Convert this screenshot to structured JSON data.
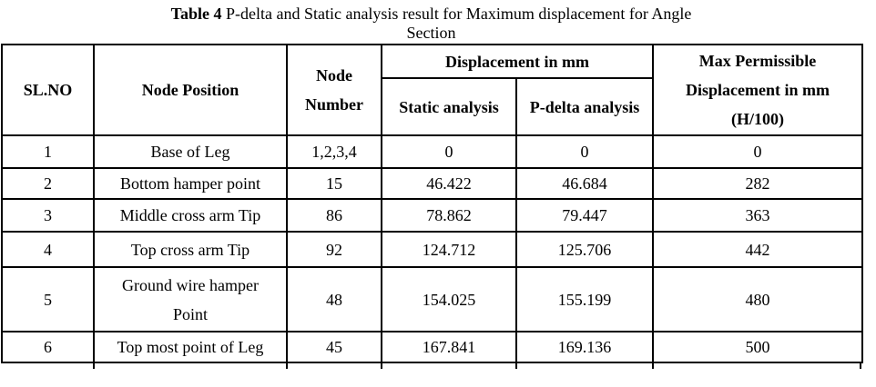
{
  "title": {
    "bold_prefix": "Table 4",
    "text": " P-delta and Static analysis result for Maximum displacement for Angle",
    "line2": "Section"
  },
  "table": {
    "headers": {
      "sl_no": "SL.NO",
      "node_position": "Node Position",
      "node_number": [
        "Node",
        "Number"
      ],
      "displacement_group": "Displacement in mm",
      "static_analysis": "Static analysis",
      "p_delta_analysis": "P-delta analysis",
      "max_permissible": [
        "Max Permissible",
        "Displacement in mm",
        "(H/100)"
      ]
    },
    "rows": [
      {
        "sl_no": "1",
        "node_position": "Base of Leg",
        "node_number": "1,2,3,4",
        "static_analysis": "0",
        "p_delta_analysis": "0",
        "max_permissible": "0"
      },
      {
        "sl_no": "2",
        "node_position": "Bottom hamper point",
        "node_number": "15",
        "static_analysis": "46.422",
        "p_delta_analysis": "46.684",
        "max_permissible": "282"
      },
      {
        "sl_no": "3",
        "node_position": "Middle cross arm Tip",
        "node_number": "86",
        "static_analysis": "78.862",
        "p_delta_analysis": "79.447",
        "max_permissible": "363"
      },
      {
        "sl_no": "4",
        "node_position": "Top cross arm Tip",
        "node_number": "92",
        "static_analysis": "124.712",
        "p_delta_analysis": "125.706",
        "max_permissible": "442"
      },
      {
        "sl_no": "5",
        "node_position": [
          "Ground wire hamper",
          "Point"
        ],
        "node_number": "48",
        "static_analysis": "154.025",
        "p_delta_analysis": "155.199",
        "max_permissible": "480"
      },
      {
        "sl_no": "6",
        "node_position": "Top most point of Leg",
        "node_number": "45",
        "static_analysis": "167.841",
        "p_delta_analysis": "169.136",
        "max_permissible": "500"
      }
    ]
  },
  "colors": {
    "text": "#000000",
    "border": "#000000",
    "background": "#ffffff"
  }
}
